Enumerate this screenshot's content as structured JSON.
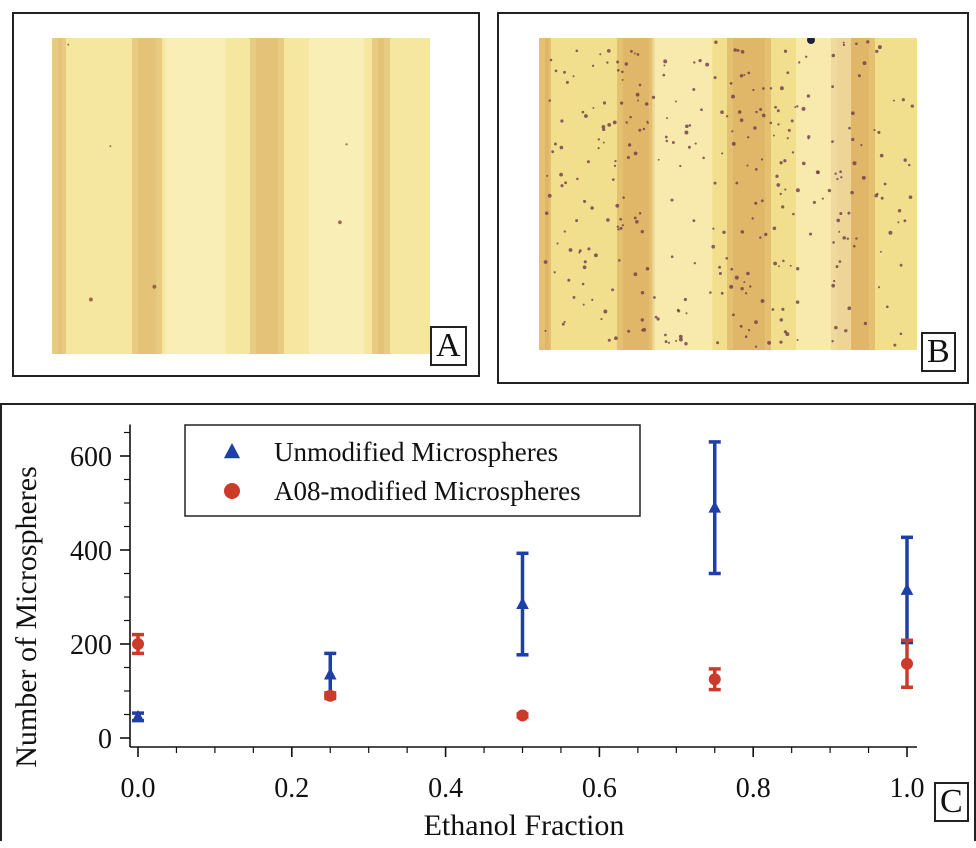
{
  "panels": {
    "a_label": "A",
    "b_label": "B",
    "c_label": "C"
  },
  "images": {
    "a": {
      "description_icon": "micrograph-sparse-icon",
      "background": "#f5e7a0",
      "band_color": "#dcb56a",
      "dot_color": "#8a4a3a",
      "dot_count": 6
    },
    "b": {
      "description_icon": "micrograph-dense-icon",
      "background": "#f2df8e",
      "band_color": "#d9a65a",
      "dot_color": "#6b3a4a",
      "dot_count": 320
    }
  },
  "chart_data": {
    "type": "scatter",
    "xlabel": "Ethanol Fraction",
    "ylabel": "Number of Microspheres",
    "xlim": [
      -0.02,
      1.06
    ],
    "ylim": [
      -15,
      650
    ],
    "xticks": [
      0.0,
      0.2,
      0.4,
      0.6,
      0.8,
      1.0
    ],
    "xtick_labels": [
      "0.0",
      "0.2",
      "0.4",
      "0.6",
      "0.8",
      "1.0"
    ],
    "yticks": [
      0,
      200,
      400,
      600
    ],
    "ytick_labels": [
      "0",
      "200",
      "400",
      "600"
    ],
    "legend_position": "top-left",
    "series": [
      {
        "name": "Unmodified Microspheres",
        "marker": "triangle",
        "color": "#1f3fa8",
        "x": [
          0.0,
          0.25,
          0.5,
          0.75,
          1.0
        ],
        "y": [
          45,
          135,
          285,
          490,
          315
        ],
        "err": [
          8,
          45,
          108,
          140,
          112
        ]
      },
      {
        "name": "A08-modified Microspheres",
        "marker": "circle",
        "color": "#cc3a2a",
        "x": [
          0.0,
          0.25,
          0.5,
          0.75,
          1.0
        ],
        "y": [
          200,
          90,
          48,
          125,
          158
        ],
        "err": [
          20,
          6,
          3,
          22,
          50
        ]
      }
    ]
  }
}
